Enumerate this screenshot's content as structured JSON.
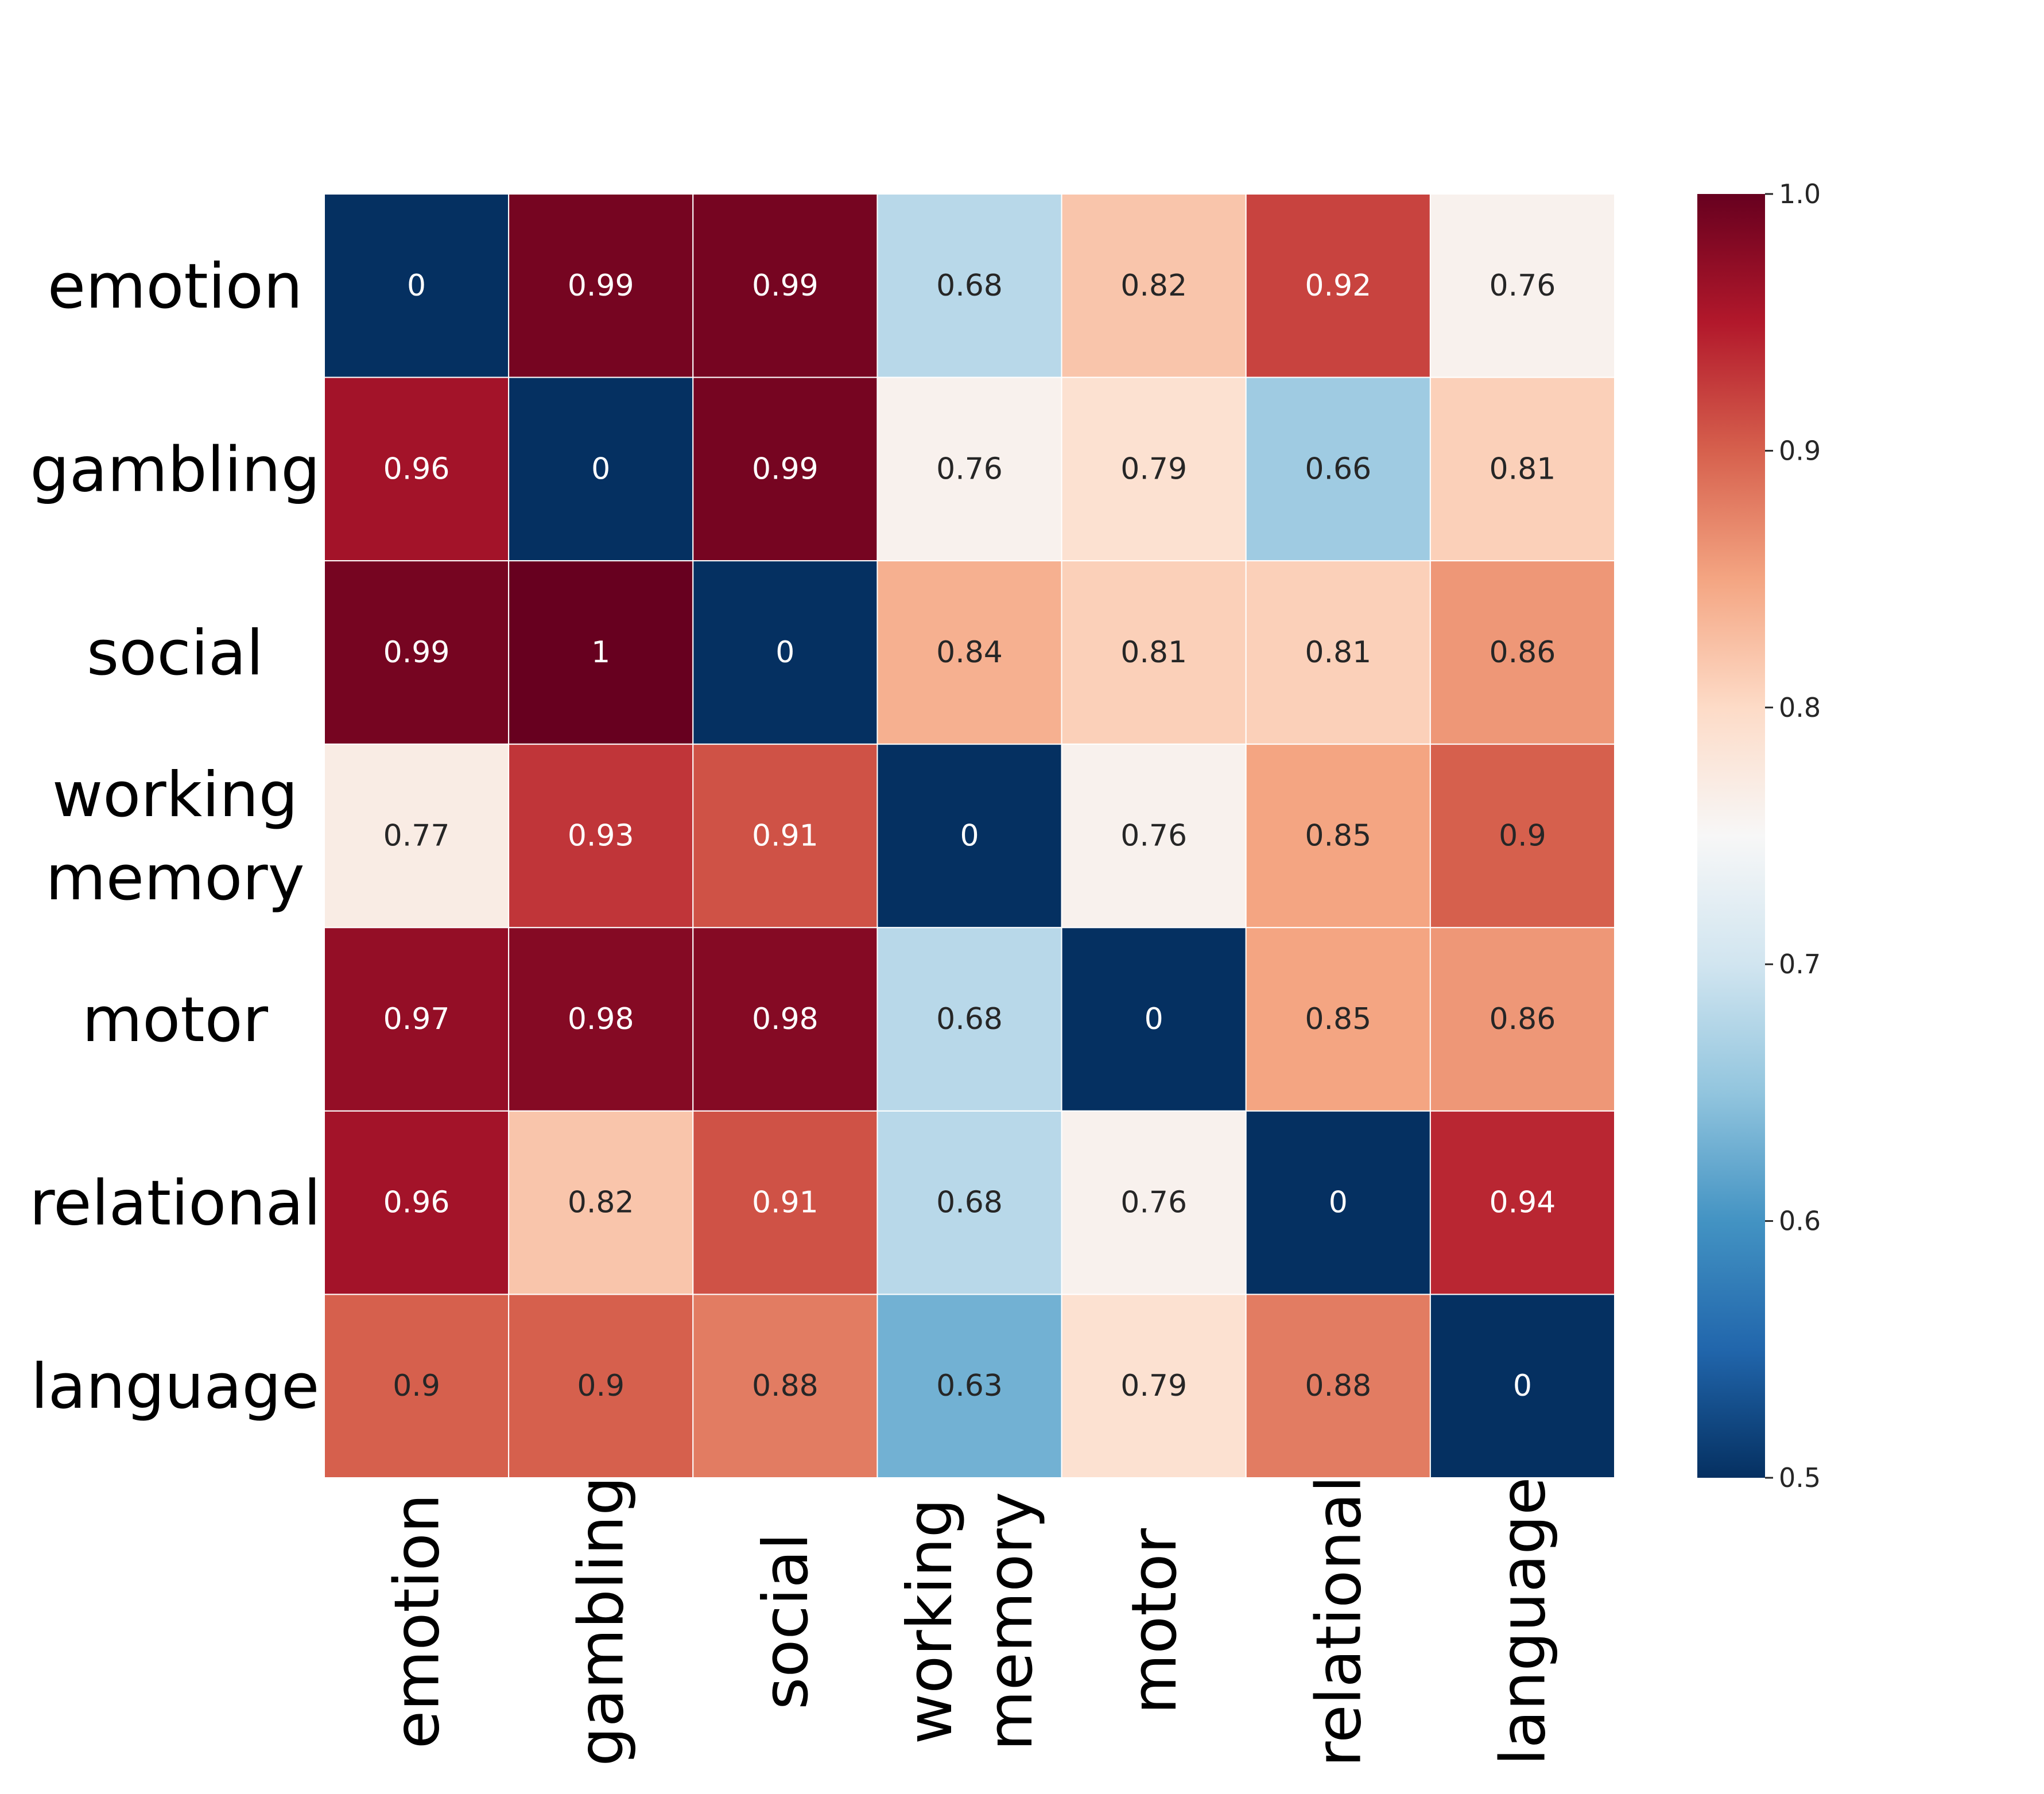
{
  "chart_data": {
    "type": "heatmap",
    "title": "",
    "xlabel": "",
    "ylabel": "",
    "rows": [
      "emotion",
      "gambling",
      "social",
      "working memory",
      "motor",
      "relational",
      "language"
    ],
    "columns": [
      "emotion",
      "gambling",
      "social",
      "working memory",
      "motor",
      "relational",
      "language"
    ],
    "row_labels": [
      [
        "emotion"
      ],
      [
        "gambling"
      ],
      [
        "social"
      ],
      [
        "working",
        "memory"
      ],
      [
        "motor"
      ],
      [
        "relational"
      ],
      [
        "language"
      ]
    ],
    "column_labels": [
      [
        "emotion"
      ],
      [
        "gambling"
      ],
      [
        "social"
      ],
      [
        "working",
        "memory"
      ],
      [
        "motor"
      ],
      [
        "relational"
      ],
      [
        "language"
      ]
    ],
    "values": [
      [
        0,
        0.99,
        0.99,
        0.68,
        0.82,
        0.92,
        0.76
      ],
      [
        0.96,
        0,
        0.99,
        0.76,
        0.79,
        0.66,
        0.81
      ],
      [
        0.99,
        1,
        0,
        0.84,
        0.81,
        0.81,
        0.86
      ],
      [
        0.77,
        0.93,
        0.91,
        0,
        0.76,
        0.85,
        0.9
      ],
      [
        0.97,
        0.98,
        0.98,
        0.68,
        0,
        0.85,
        0.86
      ],
      [
        0.96,
        0.82,
        0.91,
        0.68,
        0.76,
        0,
        0.94
      ],
      [
        0.9,
        0.9,
        0.88,
        0.63,
        0.79,
        0.88,
        0
      ]
    ],
    "value_labels": [
      [
        "0",
        "0.99",
        "0.99",
        "0.68",
        "0.82",
        "0.92",
        "0.76"
      ],
      [
        "0.96",
        "0",
        "0.99",
        "0.76",
        "0.79",
        "0.66",
        "0.81"
      ],
      [
        "0.99",
        "1",
        "0",
        "0.84",
        "0.81",
        "0.81",
        "0.86"
      ],
      [
        "0.77",
        "0.93",
        "0.91",
        "0",
        "0.76",
        "0.85",
        "0.9"
      ],
      [
        "0.97",
        "0.98",
        "0.98",
        "0.68",
        "0",
        "0.85",
        "0.86"
      ],
      [
        "0.96",
        "0.82",
        "0.91",
        "0.68",
        "0.76",
        "0",
        "0.94"
      ],
      [
        "0.9",
        "0.9",
        "0.88",
        "0.63",
        "0.79",
        "0.88",
        "0"
      ]
    ],
    "colormap": "RdBu_r",
    "colormap_stops": [
      "#053061",
      "#2166ac",
      "#4393c3",
      "#92c5de",
      "#d1e5f0",
      "#f7f7f7",
      "#fddbc7",
      "#f4a582",
      "#d6604d",
      "#b2182b",
      "#67001f"
    ],
    "vmin": 0.5,
    "vmax": 1.0,
    "colorbar_ticks": [
      0.5,
      0.6,
      0.7,
      0.8,
      0.9,
      1.0
    ],
    "colorbar_tick_labels": [
      "0.5",
      "0.6",
      "0.7",
      "0.8",
      "0.9",
      "1.0"
    ],
    "gridline_color": "#ffffff",
    "legend": "colorbar-right"
  }
}
